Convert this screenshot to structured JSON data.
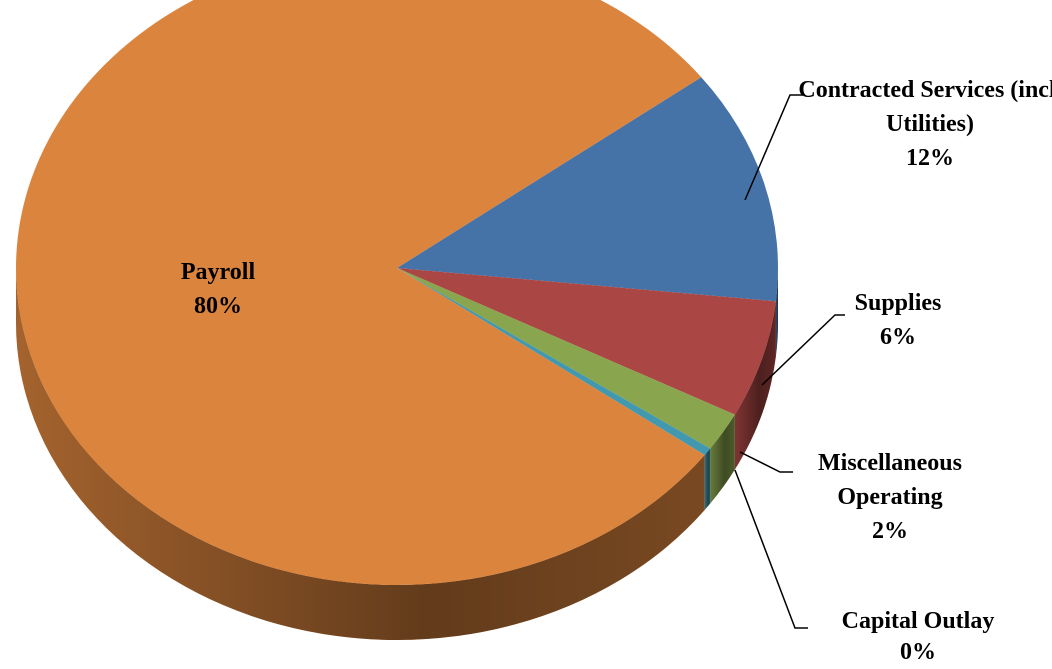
{
  "chart_data": {
    "type": "pie",
    "categories": [
      "Contracted Services (incl. Utilities)",
      "Supplies",
      "Miscellaneous Operating",
      "Capital Outlay",
      "Payroll"
    ],
    "values": [
      12,
      6,
      2,
      0.4,
      80
    ],
    "value_labels": [
      "12%",
      "6%",
      "2%",
      "0%",
      "80%"
    ],
    "colors": [
      "#4572a7",
      "#aa4643",
      "#89a54e",
      "#4198af",
      "#db843d"
    ]
  }
}
